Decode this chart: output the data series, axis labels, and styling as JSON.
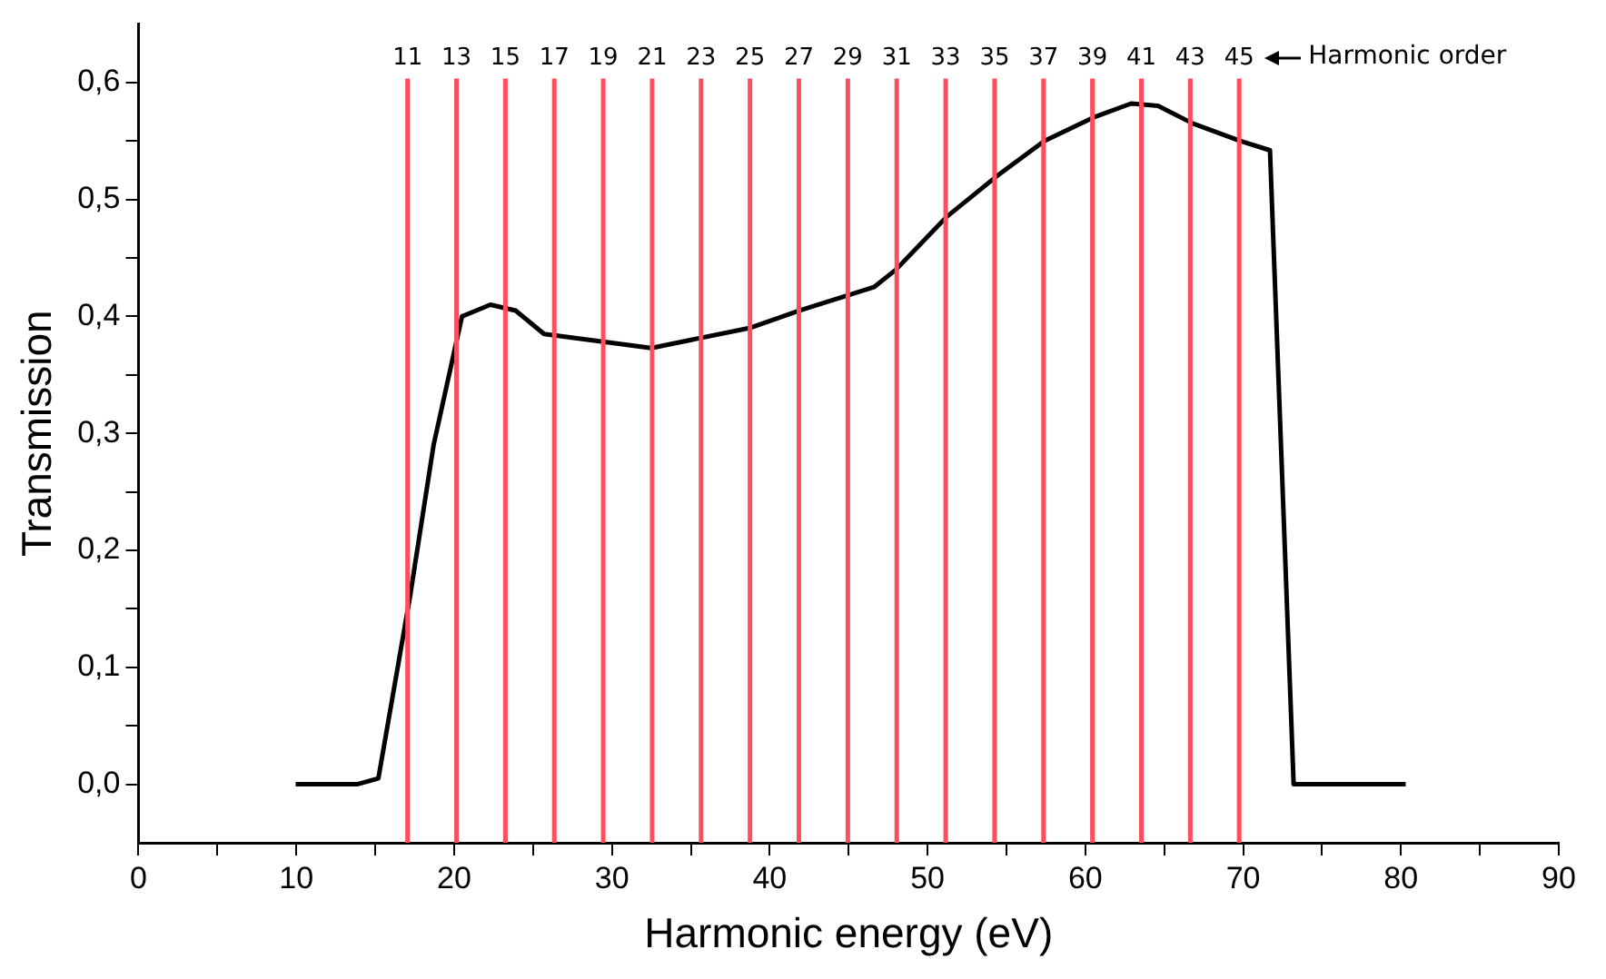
{
  "chart_data": {
    "type": "line",
    "xlabel": "Harmonic energy (eV)",
    "ylabel": "Transmission",
    "x": [
      9.96,
      13.85,
      15.2,
      17.2,
      18.7,
      20.5,
      22.3,
      23.9,
      25.7,
      32.5,
      38.7,
      41.9,
      46.6,
      48,
      51.2,
      54.4,
      57.4,
      60.5,
      62.9,
      64.6,
      66.8,
      69.8,
      71.7,
      73.2,
      75.8,
      80.3
    ],
    "series": [
      {
        "color": "#000000",
        "values": [
          0,
          0,
          0.005,
          0.16,
          0.29,
          0.4,
          0.41,
          0.405,
          0.385,
          0.373,
          0.39,
          0.405,
          0.425,
          0.44,
          0.485,
          0.52,
          0.55,
          0.57,
          0.582,
          0.58,
          0.565,
          0.55,
          0.542,
          0,
          0,
          0
        ]
      }
    ],
    "xlim": [
      0,
      90
    ],
    "ylim": [
      -0.05,
      0.65
    ],
    "xticks": [
      0,
      {
        "value": 5,
        "label": null
      },
      10,
      {
        "value": 15,
        "label": null
      },
      20,
      {
        "value": 25,
        "label": null
      },
      30,
      {
        "value": 35,
        "label": null
      },
      40,
      {
        "value": 45,
        "label": null
      },
      50,
      {
        "value": 55,
        "label": null
      },
      60,
      {
        "value": 65,
        "label": null
      },
      70,
      {
        "value": 75,
        "label": null
      },
      80,
      {
        "value": 85,
        "label": null
      },
      90
    ],
    "yticks": [
      {
        "value": 0,
        "label": "0,0"
      },
      {
        "value": 0.05,
        "label": null
      },
      {
        "value": 0.1,
        "label": "0,1"
      },
      {
        "value": 0.15,
        "label": null
      },
      {
        "value": 0.2,
        "label": "0,2"
      },
      {
        "value": 0.25,
        "label": null
      },
      {
        "value": 0.3,
        "label": "0,3"
      },
      {
        "value": 0.35,
        "label": null
      },
      {
        "value": 0.4,
        "label": "0,4"
      },
      {
        "value": 0.45,
        "label": null
      },
      {
        "value": 0.5,
        "label": "0,5"
      },
      {
        "value": 0.55,
        "label": null
      },
      {
        "value": 0.6,
        "label": "0,6"
      }
    ],
    "ref_lines": [
      {
        "axis": "x",
        "value": 17.05,
        "color": "#ff4d5e"
      },
      {
        "axis": "x",
        "value": 20.15,
        "color": "#ff4d5e"
      },
      {
        "axis": "x",
        "value": 23.25,
        "color": "#ff4d5e"
      },
      {
        "axis": "x",
        "value": 26.35,
        "color": "#ff4d5e"
      },
      {
        "axis": "x",
        "value": 29.45,
        "color": "#ff4d5e"
      },
      {
        "axis": "x",
        "value": 32.55,
        "color": "#ff4d5e"
      },
      {
        "axis": "x",
        "value": 35.65,
        "color": "#ff4d5e"
      },
      {
        "axis": "x",
        "value": 38.75,
        "color": "#ff4d5e"
      },
      {
        "axis": "x",
        "value": 41.85,
        "color": "#ff4d5e"
      },
      {
        "axis": "x",
        "value": 44.95,
        "color": "#ff4d5e"
      },
      {
        "axis": "x",
        "value": 48.05,
        "color": "#ff4d5e"
      },
      {
        "axis": "x",
        "value": 51.15,
        "color": "#ff4d5e"
      },
      {
        "axis": "x",
        "value": 54.25,
        "color": "#ff4d5e"
      },
      {
        "axis": "x",
        "value": 57.35,
        "color": "#ff4d5e"
      },
      {
        "axis": "x",
        "value": 60.45,
        "color": "#ff4d5e"
      },
      {
        "axis": "x",
        "value": 63.55,
        "color": "#ff4d5e"
      },
      {
        "axis": "x",
        "value": 66.65,
        "color": "#ff4d5e"
      },
      {
        "axis": "x",
        "value": 69.75,
        "color": "#ff4d5e"
      }
    ],
    "annotations": [
      "11",
      "13",
      "15",
      "17",
      "19",
      "21",
      "23",
      "25",
      "27",
      "29",
      "31",
      "33",
      "35",
      "37",
      "39",
      "41",
      "43",
      "45",
      "Harmonic order"
    ],
    "grid": false,
    "legend": false,
    "marker": "none",
    "line_style": "solid"
  }
}
